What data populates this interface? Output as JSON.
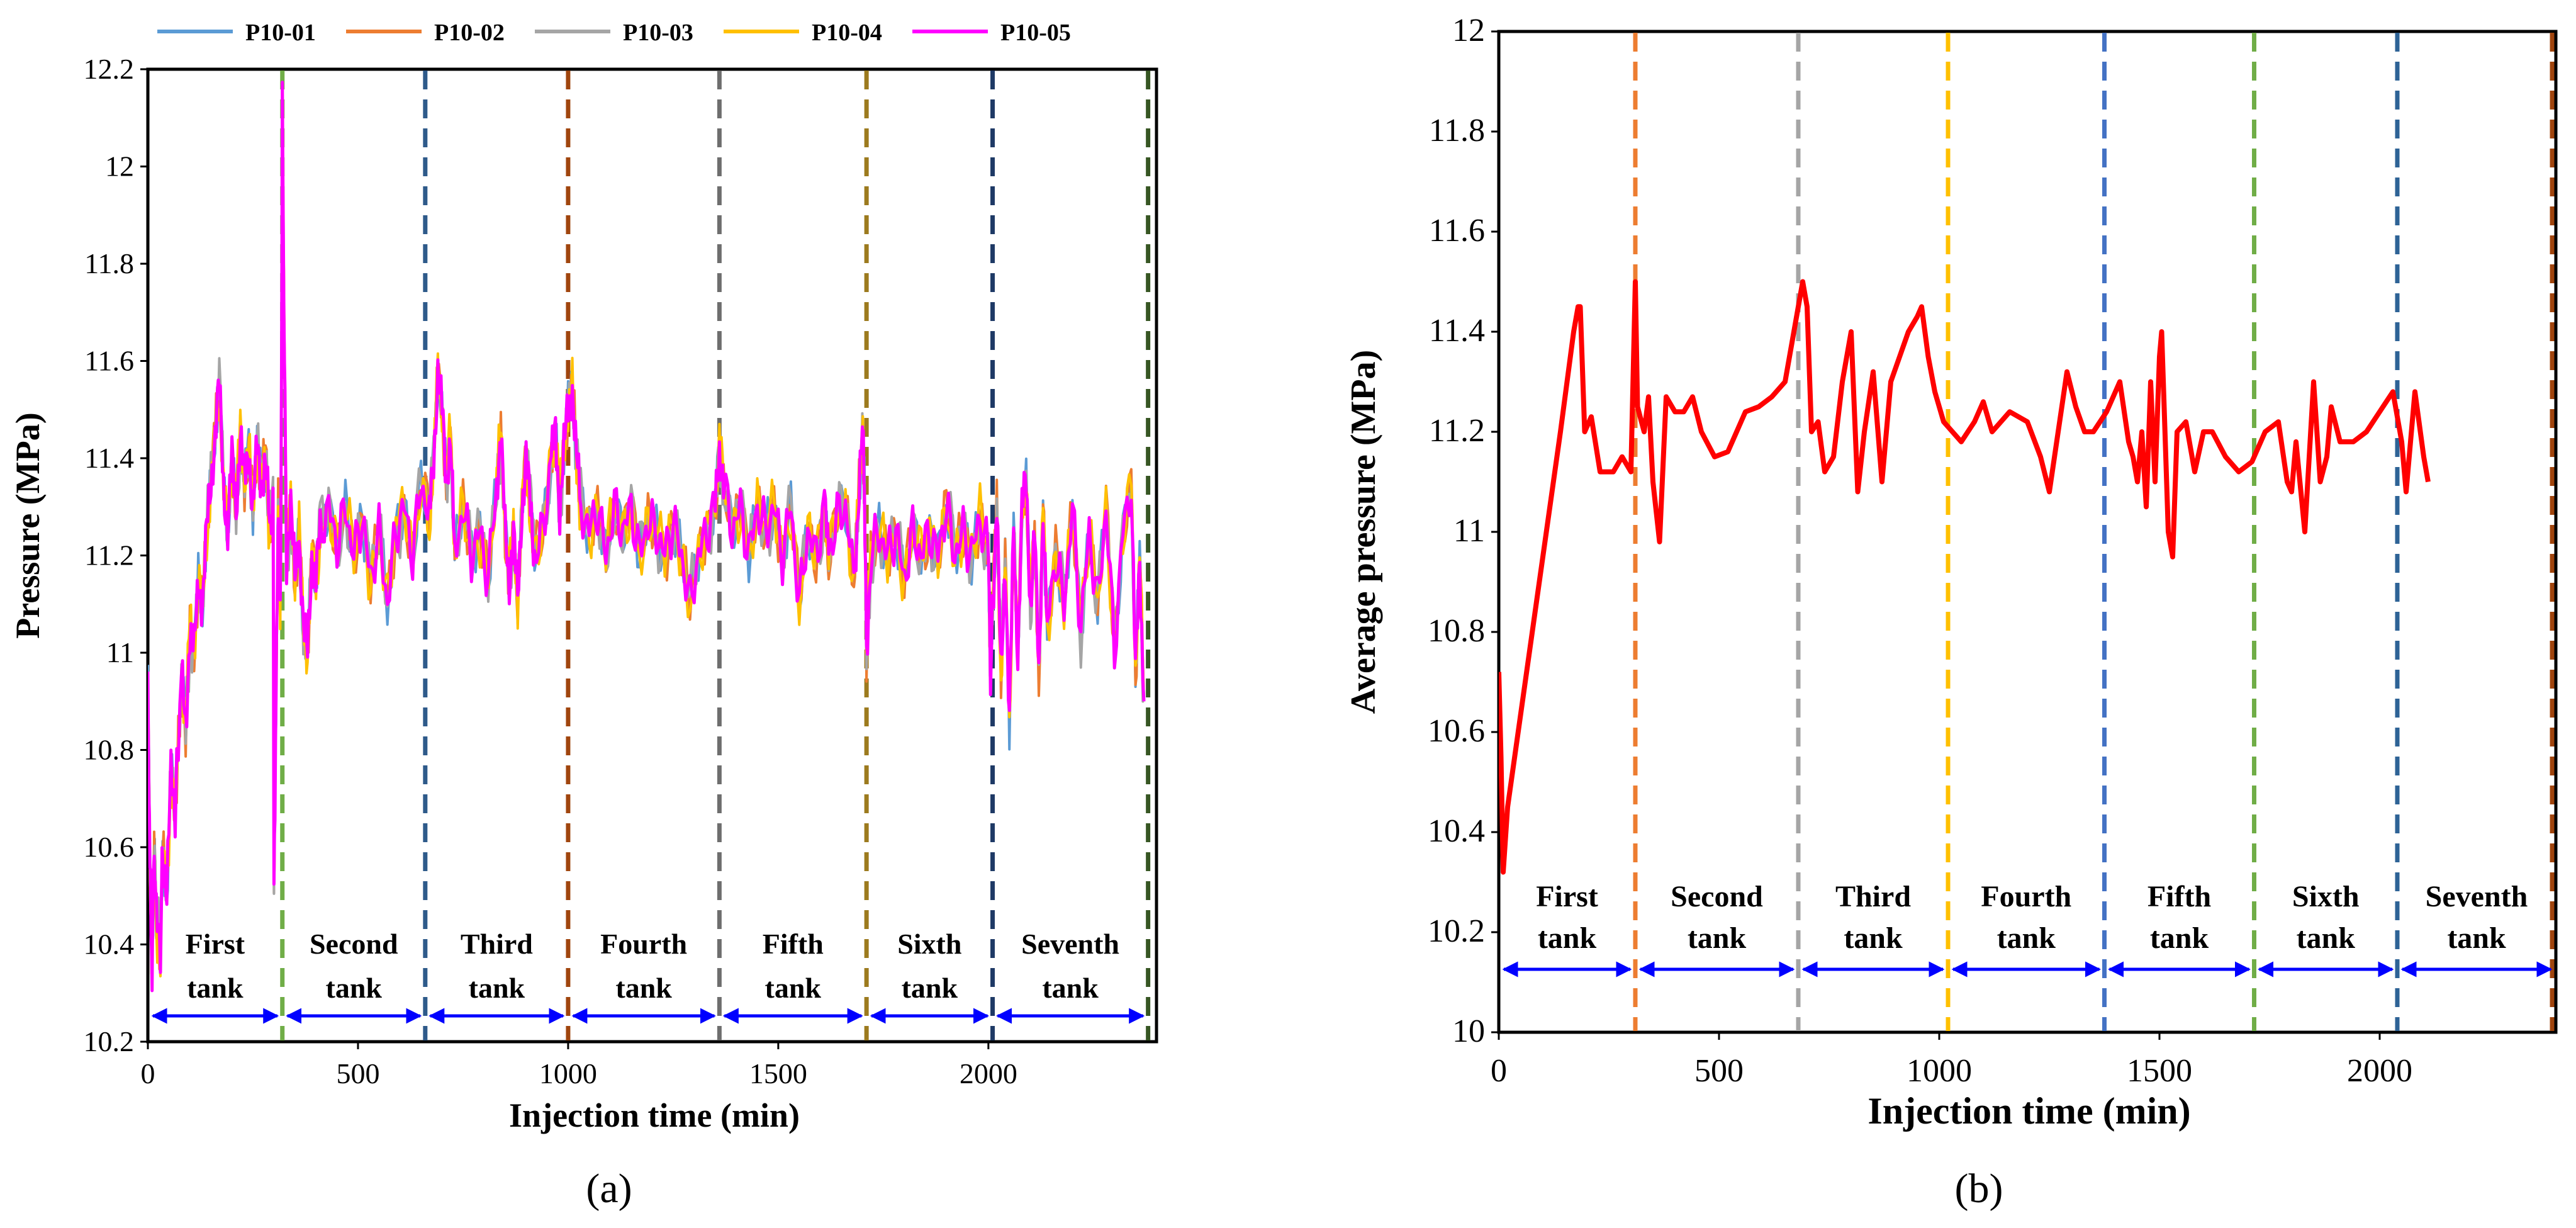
{
  "colors": {
    "series": [
      "#5B9BD5",
      "#ED7D31",
      "#A5A5A5",
      "#FFC000",
      "#FF00FF"
    ],
    "avg": "#FF0000",
    "arrow": "#0000FF",
    "dividers_a": [
      "#70AD47",
      "#2E5A8A",
      "#A0450E",
      "#6E6E6E",
      "#9C7A1E",
      "#1F3A66",
      "#375623"
    ],
    "dividers_b": [
      "#ED7D31",
      "#A5A5A5",
      "#FFC000",
      "#4472C4",
      "#70AD47",
      "#2E6396",
      "#A0450E"
    ]
  },
  "chart_data": [
    {
      "id": "a",
      "type": "line",
      "panel_label": "(a)",
      "xlabel": "Injection time (min)",
      "ylabel": "Pressure (MPa)",
      "xlim": [
        0,
        2400
      ],
      "ylim": [
        10.2,
        12.2
      ],
      "xticks": [
        0,
        500,
        1000,
        1500,
        2000
      ],
      "yticks": [
        10.2,
        10.4,
        10.6,
        10.8,
        11,
        11.2,
        11.4,
        11.6,
        11.8,
        12,
        12.2
      ],
      "ytick_labels": [
        "10.2",
        "10.4",
        "10.6",
        "10.8",
        "11",
        "11.2",
        "11.4",
        "11.6",
        "11.8",
        "12",
        "12.2"
      ],
      "legend_position": "top",
      "series_names": [
        "P10-01",
        "P10-02",
        "P10-03",
        "P10-04",
        "P10-05"
      ],
      "profile": [
        [
          0,
          10.95
        ],
        [
          5,
          10.55
        ],
        [
          10,
          10.35
        ],
        [
          15,
          10.6
        ],
        [
          20,
          10.45
        ],
        [
          30,
          10.38
        ],
        [
          35,
          10.6
        ],
        [
          45,
          10.5
        ],
        [
          55,
          10.75
        ],
        [
          65,
          10.68
        ],
        [
          80,
          10.95
        ],
        [
          90,
          10.85
        ],
        [
          100,
          11.05
        ],
        [
          110,
          11.0
        ],
        [
          120,
          11.15
        ],
        [
          130,
          11.1
        ],
        [
          140,
          11.25
        ],
        [
          150,
          11.35
        ],
        [
          160,
          11.45
        ],
        [
          170,
          11.55
        ],
        [
          180,
          11.35
        ],
        [
          190,
          11.25
        ],
        [
          200,
          11.4
        ],
        [
          210,
          11.3
        ],
        [
          220,
          11.45
        ],
        [
          230,
          11.35
        ],
        [
          240,
          11.42
        ],
        [
          250,
          11.3
        ],
        [
          260,
          11.42
        ],
        [
          270,
          11.35
        ],
        [
          280,
          11.4
        ],
        [
          290,
          11.25
        ],
        [
          298,
          11.3
        ],
        [
          300,
          10.53
        ],
        [
          305,
          10.9
        ],
        [
          310,
          11.3
        ],
        [
          315,
          11.1
        ],
        [
          318,
          11.55
        ],
        [
          320,
          12.12
        ],
        [
          325,
          11.6
        ],
        [
          330,
          11.2
        ],
        [
          340,
          11.3
        ],
        [
          350,
          11.15
        ],
        [
          360,
          11.25
        ],
        [
          370,
          11.05
        ],
        [
          380,
          11.0
        ],
        [
          390,
          11.2
        ],
        [
          400,
          11.15
        ],
        [
          410,
          11.25
        ],
        [
          430,
          11.3
        ],
        [
          450,
          11.22
        ],
        [
          470,
          11.3
        ],
        [
          490,
          11.2
        ],
        [
          510,
          11.28
        ],
        [
          530,
          11.15
        ],
        [
          550,
          11.25
        ],
        [
          570,
          11.1
        ],
        [
          590,
          11.25
        ],
        [
          610,
          11.3
        ],
        [
          630,
          11.2
        ],
        [
          650,
          11.35
        ],
        [
          670,
          11.28
        ],
        [
          680,
          11.4
        ],
        [
          690,
          11.58
        ],
        [
          700,
          11.5
        ],
        [
          710,
          11.35
        ],
        [
          720,
          11.45
        ],
        [
          730,
          11.2
        ],
        [
          750,
          11.3
        ],
        [
          770,
          11.2
        ],
        [
          790,
          11.25
        ],
        [
          810,
          11.15
        ],
        [
          830,
          11.35
        ],
        [
          840,
          11.45
        ],
        [
          850,
          11.25
        ],
        [
          860,
          11.15
        ],
        [
          870,
          11.25
        ],
        [
          880,
          11.1
        ],
        [
          890,
          11.3
        ],
        [
          900,
          11.4
        ],
        [
          910,
          11.3
        ],
        [
          920,
          11.2
        ],
        [
          940,
          11.25
        ],
        [
          960,
          11.4
        ],
        [
          970,
          11.45
        ],
        [
          980,
          11.3
        ],
        [
          990,
          11.42
        ],
        [
          1000,
          11.5
        ],
        [
          1010,
          11.55
        ],
        [
          1020,
          11.4
        ],
        [
          1030,
          11.3
        ],
        [
          1050,
          11.25
        ],
        [
          1070,
          11.3
        ],
        [
          1090,
          11.2
        ],
        [
          1110,
          11.3
        ],
        [
          1130,
          11.25
        ],
        [
          1150,
          11.3
        ],
        [
          1170,
          11.2
        ],
        [
          1190,
          11.27
        ],
        [
          1210,
          11.25
        ],
        [
          1230,
          11.2
        ],
        [
          1250,
          11.27
        ],
        [
          1270,
          11.2
        ],
        [
          1290,
          11.1
        ],
        [
          1310,
          11.2
        ],
        [
          1330,
          11.25
        ],
        [
          1350,
          11.3
        ],
        [
          1360,
          11.42
        ],
        [
          1370,
          11.35
        ],
        [
          1390,
          11.25
        ],
        [
          1410,
          11.3
        ],
        [
          1430,
          11.2
        ],
        [
          1450,
          11.3
        ],
        [
          1470,
          11.25
        ],
        [
          1490,
          11.3
        ],
        [
          1510,
          11.2
        ],
        [
          1530,
          11.3
        ],
        [
          1550,
          11.1
        ],
        [
          1570,
          11.25
        ],
        [
          1590,
          11.2
        ],
        [
          1610,
          11.3
        ],
        [
          1620,
          11.2
        ],
        [
          1640,
          11.28
        ],
        [
          1660,
          11.3
        ],
        [
          1680,
          11.15
        ],
        [
          1690,
          11.3
        ],
        [
          1700,
          11.45
        ],
        [
          1705,
          11.35
        ],
        [
          1710,
          11.0
        ],
        [
          1720,
          11.2
        ],
        [
          1740,
          11.25
        ],
        [
          1760,
          11.2
        ],
        [
          1780,
          11.25
        ],
        [
          1800,
          11.15
        ],
        [
          1820,
          11.25
        ],
        [
          1840,
          11.2
        ],
        [
          1860,
          11.25
        ],
        [
          1880,
          11.2
        ],
        [
          1900,
          11.3
        ],
        [
          1920,
          11.2
        ],
        [
          1940,
          11.25
        ],
        [
          1960,
          11.2
        ],
        [
          1980,
          11.28
        ],
        [
          2000,
          11.2
        ],
        [
          2005,
          10.95
        ],
        [
          2010,
          11.1
        ],
        [
          2020,
          11.3
        ],
        [
          2030,
          10.95
        ],
        [
          2040,
          11.2
        ],
        [
          2050,
          10.85
        ],
        [
          2060,
          11.25
        ],
        [
          2070,
          11.0
        ],
        [
          2080,
          11.3
        ],
        [
          2090,
          11.35
        ],
        [
          2100,
          11.1
        ],
        [
          2110,
          11.25
        ],
        [
          2120,
          10.95
        ],
        [
          2130,
          11.3
        ],
        [
          2140,
          11.05
        ],
        [
          2160,
          11.2
        ],
        [
          2180,
          11.1
        ],
        [
          2200,
          11.3
        ],
        [
          2220,
          11.05
        ],
        [
          2240,
          11.25
        ],
        [
          2260,
          11.1
        ],
        [
          2280,
          11.3
        ],
        [
          2300,
          11.0
        ],
        [
          2320,
          11.25
        ],
        [
          2340,
          11.35
        ],
        [
          2350,
          10.95
        ],
        [
          2360,
          11.2
        ],
        [
          2370,
          10.9
        ]
      ],
      "dividers": [
        320,
        660,
        1000,
        1360,
        1710,
        2010,
        2380
      ],
      "tank_labels": [
        [
          "First",
          "tank"
        ],
        [
          "Second",
          "tank"
        ],
        [
          "Third",
          "tank"
        ],
        [
          "Fourth",
          "tank"
        ],
        [
          "Fifth",
          "tank"
        ],
        [
          "Sixth",
          "tank"
        ],
        [
          "Seventh",
          "tank"
        ]
      ]
    },
    {
      "id": "b",
      "type": "line",
      "panel_label": "(b)",
      "xlabel": "Injection time (min)",
      "ylabel": "Average pressure (MPa)",
      "xlim": [
        0,
        2400
      ],
      "ylim": [
        10,
        12
      ],
      "xticks": [
        0,
        500,
        1000,
        1500,
        2000
      ],
      "yticks": [
        10,
        10.2,
        10.4,
        10.6,
        10.8,
        11,
        11.2,
        11.4,
        11.6,
        11.8,
        12
      ],
      "ytick_labels": [
        "10",
        "10.2",
        "10.4",
        "10.6",
        "10.8",
        "11",
        "11.2",
        "11.4",
        "11.6",
        "11.8",
        "12"
      ],
      "series_names": [
        "Average pressure"
      ],
      "series": [
        {
          "name": "Average pressure",
          "points": [
            [
              0,
              10.72
            ],
            [
              5,
              10.55
            ],
            [
              10,
              10.32
            ],
            [
              20,
              10.45
            ],
            [
              60,
              10.7
            ],
            [
              100,
              10.95
            ],
            [
              140,
              11.2
            ],
            [
              170,
              11.4
            ],
            [
              180,
              11.45
            ],
            [
              185,
              11.45
            ],
            [
              195,
              11.2
            ],
            [
              210,
              11.23
            ],
            [
              230,
              11.12
            ],
            [
              260,
              11.12
            ],
            [
              280,
              11.15
            ],
            [
              300,
              11.12
            ],
            [
              310,
              11.5
            ],
            [
              315,
              11.25
            ],
            [
              330,
              11.2
            ],
            [
              340,
              11.27
            ],
            [
              350,
              11.1
            ],
            [
              365,
              10.98
            ],
            [
              380,
              11.27
            ],
            [
              400,
              11.24
            ],
            [
              420,
              11.24
            ],
            [
              440,
              11.27
            ],
            [
              460,
              11.2
            ],
            [
              490,
              11.15
            ],
            [
              520,
              11.16
            ],
            [
              540,
              11.2
            ],
            [
              560,
              11.24
            ],
            [
              590,
              11.25
            ],
            [
              620,
              11.27
            ],
            [
              650,
              11.3
            ],
            [
              670,
              11.4
            ],
            [
              690,
              11.5
            ],
            [
              700,
              11.45
            ],
            [
              710,
              11.2
            ],
            [
              725,
              11.22
            ],
            [
              740,
              11.12
            ],
            [
              760,
              11.15
            ],
            [
              780,
              11.3
            ],
            [
              800,
              11.4
            ],
            [
              815,
              11.08
            ],
            [
              830,
              11.2
            ],
            [
              850,
              11.32
            ],
            [
              870,
              11.1
            ],
            [
              890,
              11.3
            ],
            [
              910,
              11.35
            ],
            [
              930,
              11.4
            ],
            [
              950,
              11.43
            ],
            [
              960,
              11.45
            ],
            [
              975,
              11.35
            ],
            [
              990,
              11.28
            ],
            [
              1010,
              11.22
            ],
            [
              1050,
              11.18
            ],
            [
              1080,
              11.22
            ],
            [
              1100,
              11.26
            ],
            [
              1120,
              11.2
            ],
            [
              1160,
              11.24
            ],
            [
              1200,
              11.22
            ],
            [
              1230,
              11.15
            ],
            [
              1250,
              11.08
            ],
            [
              1270,
              11.2
            ],
            [
              1290,
              11.32
            ],
            [
              1310,
              11.25
            ],
            [
              1330,
              11.2
            ],
            [
              1350,
              11.2
            ],
            [
              1380,
              11.24
            ],
            [
              1410,
              11.3
            ],
            [
              1430,
              11.18
            ],
            [
              1440,
              11.15
            ],
            [
              1450,
              11.1
            ],
            [
              1460,
              11.2
            ],
            [
              1470,
              11.05
            ],
            [
              1480,
              11.3
            ],
            [
              1490,
              11.1
            ],
            [
              1500,
              11.35
            ],
            [
              1505,
              11.4
            ],
            [
              1520,
              11.0
            ],
            [
              1530,
              10.95
            ],
            [
              1540,
              11.2
            ],
            [
              1560,
              11.22
            ],
            [
              1580,
              11.12
            ],
            [
              1600,
              11.2
            ],
            [
              1620,
              11.2
            ],
            [
              1650,
              11.15
            ],
            [
              1680,
              11.12
            ],
            [
              1710,
              11.14
            ],
            [
              1740,
              11.2
            ],
            [
              1770,
              11.22
            ],
            [
              1790,
              11.1
            ],
            [
              1800,
              11.08
            ],
            [
              1810,
              11.18
            ],
            [
              1830,
              11.0
            ],
            [
              1850,
              11.3
            ],
            [
              1865,
              11.1
            ],
            [
              1880,
              11.15
            ],
            [
              1890,
              11.25
            ],
            [
              1910,
              11.18
            ],
            [
              1940,
              11.18
            ],
            [
              1970,
              11.2
            ],
            [
              2000,
              11.24
            ],
            [
              2030,
              11.28
            ],
            [
              2050,
              11.18
            ],
            [
              2060,
              11.08
            ],
            [
              2070,
              11.18
            ],
            [
              2080,
              11.28
            ],
            [
              2100,
              11.15
            ],
            [
              2110,
              11.1
            ]
          ]
        }
      ],
      "dividers": [
        310,
        680,
        1020,
        1375,
        1715,
        2040,
        2400
      ],
      "tank_labels": [
        [
          "First",
          "tank"
        ],
        [
          "Second",
          "tank"
        ],
        [
          "Third",
          "tank"
        ],
        [
          "Fourth",
          "tank"
        ],
        [
          "Fifth",
          "tank"
        ],
        [
          "Sixth",
          "tank"
        ],
        [
          "Seventh",
          "tank"
        ]
      ]
    }
  ]
}
